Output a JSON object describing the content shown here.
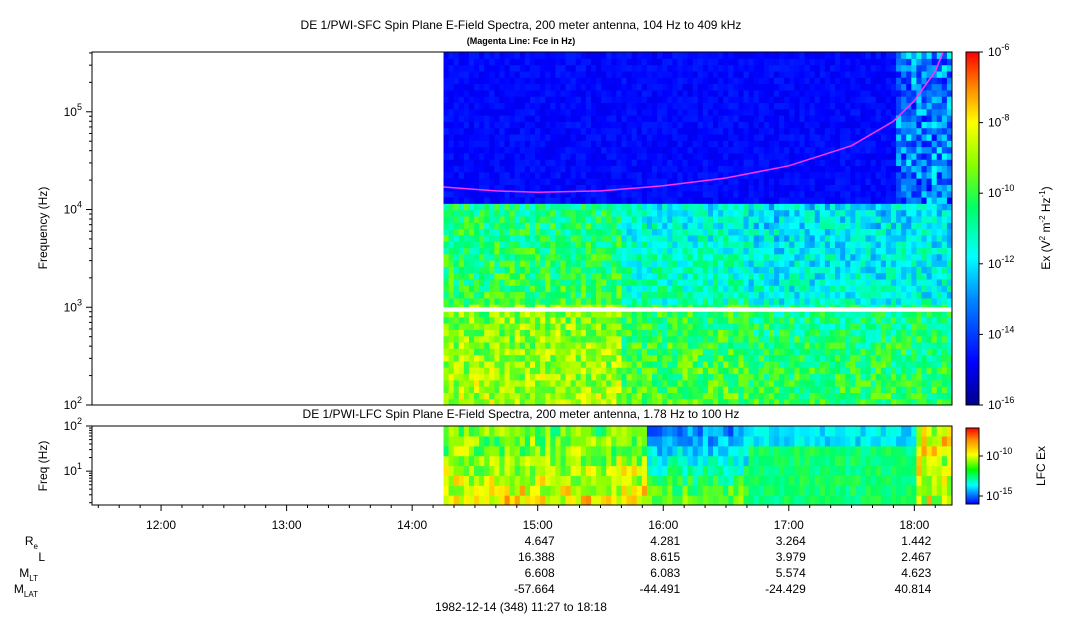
{
  "chart_data": [
    {
      "type": "heatmap",
      "title": "DE 1/PWI-SFC  Spin Plane E-Field Spectra, 200 meter antenna, 104 Hz to 409 kHz",
      "subtitle": "(Magenta Line: Fce in Hz)",
      "ylabel": "Frequency (Hz)",
      "yscale": "log",
      "ylim": [
        100,
        409000
      ],
      "yticks": [
        {
          "value": 100,
          "base": "10",
          "exp": "2"
        },
        {
          "value": 1000,
          "base": "10",
          "exp": "3"
        },
        {
          "value": 10000,
          "base": "10",
          "exp": "4"
        },
        {
          "value": 100000,
          "base": "10",
          "exp": "5"
        }
      ],
      "data_start": "14:15",
      "colorbar": {
        "label_prefix": "Ex (V",
        "label_sup1": "2",
        "label_mid": " m",
        "label_sup2": "-2",
        "label_mid2": " Hz",
        "label_sup3": "-1",
        "label_suffix": ")",
        "scale": "log",
        "range": [
          1e-16,
          1e-06
        ],
        "ticks": [
          {
            "base": "10",
            "exp": "-6"
          },
          {
            "base": "10",
            "exp": "-8"
          },
          {
            "base": "10",
            "exp": "-10"
          },
          {
            "base": "10",
            "exp": "-12"
          },
          {
            "base": "10",
            "exp": "-14"
          },
          {
            "base": "10",
            "exp": "-16"
          }
        ]
      },
      "fce_line": {
        "name": "Fce",
        "color": "#ff33ff",
        "points": [
          {
            "t": "14:15",
            "f": 17000
          },
          {
            "t": "14:40",
            "f": 15500
          },
          {
            "t": "15:00",
            "f": 15000
          },
          {
            "t": "15:30",
            "f": 15500
          },
          {
            "t": "16:00",
            "f": 17500
          },
          {
            "t": "16:30",
            "f": 21000
          },
          {
            "t": "17:00",
            "f": 28000
          },
          {
            "t": "17:30",
            "f": 45000
          },
          {
            "t": "17:50",
            "f": 80000
          },
          {
            "t": "18:00",
            "f": 130000
          },
          {
            "t": "18:10",
            "f": 260000
          },
          {
            "t": "18:14",
            "f": 420000
          }
        ]
      }
    },
    {
      "type": "heatmap",
      "title": "DE 1/PWI-LFC  Spin Plane E-Field Spectra, 200 meter antenna, 1.78 Hz to 100 Hz",
      "ylabel": "Freq (Hz)",
      "yscale": "log",
      "ylim": [
        1.78,
        100
      ],
      "yticks": [
        {
          "value": 10,
          "base": "10",
          "exp": "1"
        },
        {
          "value": 100,
          "base": "10",
          "exp": "2"
        }
      ],
      "data_start": "14:15",
      "colorbar": {
        "label": "LFC Ex",
        "scale": "log",
        "range": [
          1e-16,
          1e-08
        ],
        "ticks": [
          {
            "base": "10",
            "exp": "-10"
          },
          {
            "base": "10",
            "exp": "-15"
          }
        ]
      }
    }
  ],
  "time_axis": {
    "start": "11:27",
    "end": "18:18",
    "ticks": [
      "12:00",
      "13:00",
      "14:00",
      "15:00",
      "16:00",
      "17:00",
      "18:00"
    ]
  },
  "ephemeris": {
    "labels": [
      {
        "main": "R",
        "sub": "e"
      },
      {
        "main": "L",
        "sub": ""
      },
      {
        "main": "M",
        "sub": "LT"
      },
      {
        "main": "M",
        "sub": "LAT"
      }
    ],
    "columns": [
      {
        "time": "15:00",
        "values": [
          "4.647",
          "16.388",
          "6.608",
          "-57.664"
        ]
      },
      {
        "time": "16:00",
        "values": [
          "4.281",
          "8.615",
          "6.083",
          "-44.491"
        ]
      },
      {
        "time": "17:00",
        "values": [
          "3.264",
          "3.979",
          "5.574",
          "-24.429"
        ]
      },
      {
        "time": "18:00",
        "values": [
          "1.442",
          "2.467",
          "4.623",
          "40.814"
        ]
      }
    ]
  },
  "footer": {
    "date_range": "1982-12-14 (348) 11:27 to 18:18"
  }
}
